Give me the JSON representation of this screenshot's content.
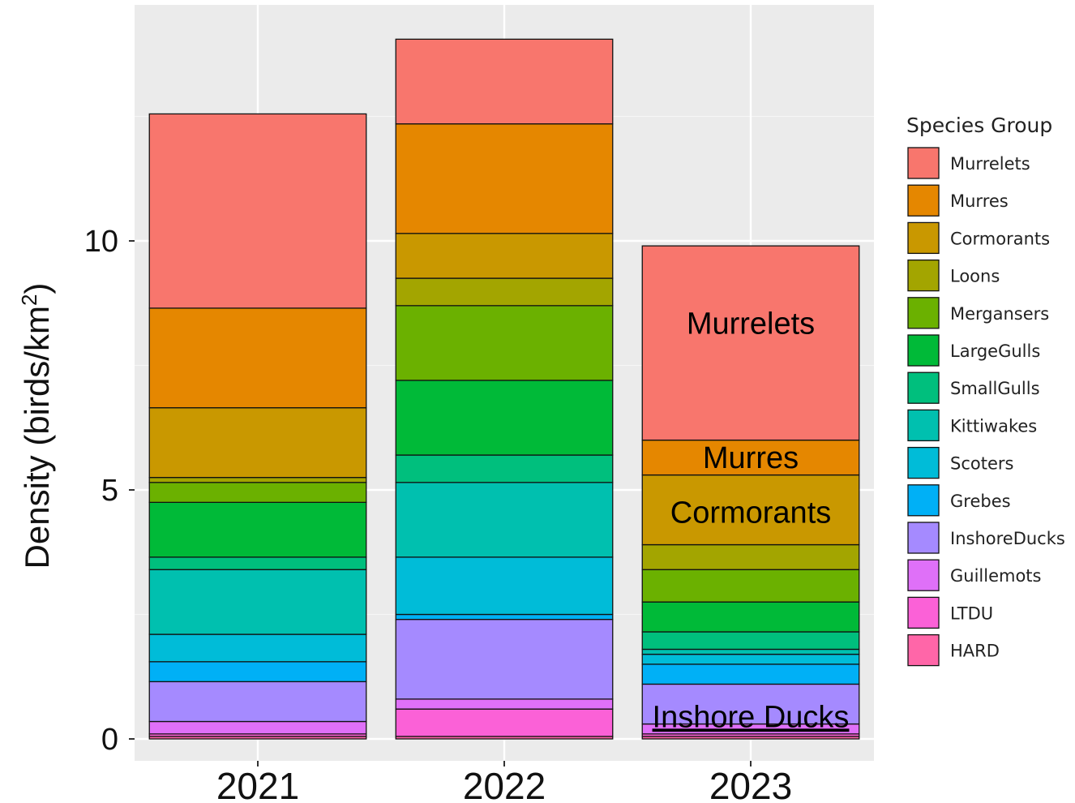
{
  "chart_data": {
    "type": "bar",
    "stacked": true,
    "ylabel_prefix": "Density (birds/km",
    "ylabel_sup": "2",
    "ylabel_suffix": ")",
    "xlabel": "",
    "ylim": [
      0,
      15
    ],
    "yticks": [
      0,
      5,
      10
    ],
    "grid": true,
    "legend_position": "right",
    "legend_title": "Species Group",
    "categories": [
      "2021",
      "2022",
      "2023"
    ],
    "series": [
      {
        "name": "Murrelets",
        "color": "#F8766D",
        "values": [
          3.9,
          1.7,
          3.9
        ]
      },
      {
        "name": "Murres",
        "color": "#E58700",
        "values": [
          2.0,
          2.2,
          0.7
        ]
      },
      {
        "name": "Cormorants",
        "color": "#C99800",
        "values": [
          1.4,
          0.9,
          1.4
        ]
      },
      {
        "name": "Loons",
        "color": "#A3A500",
        "values": [
          0.1,
          0.55,
          0.5
        ]
      },
      {
        "name": "Mergansers",
        "color": "#6BB100",
        "values": [
          0.4,
          1.5,
          0.65
        ]
      },
      {
        "name": "LargeGulls",
        "color": "#00BA38",
        "values": [
          1.1,
          1.5,
          0.6
        ]
      },
      {
        "name": "SmallGulls",
        "color": "#00BF7D",
        "values": [
          0.25,
          0.55,
          0.35
        ]
      },
      {
        "name": "Kittiwakes",
        "color": "#00C0AF",
        "values": [
          1.3,
          1.5,
          0.1
        ]
      },
      {
        "name": "Scoters",
        "color": "#00BCD8",
        "values": [
          0.55,
          1.15,
          0.2
        ]
      },
      {
        "name": "Grebes",
        "color": "#00B0F6",
        "values": [
          0.4,
          0.1,
          0.4
        ]
      },
      {
        "name": "InshoreDucks",
        "color": "#A58AFF",
        "values": [
          0.8,
          1.6,
          0.8
        ]
      },
      {
        "name": "Guillemots",
        "color": "#DF70F8",
        "values": [
          0.25,
          0.2,
          0.2
        ]
      },
      {
        "name": "LTDU",
        "color": "#FB61D7",
        "values": [
          0.05,
          0.55,
          0.05
        ]
      },
      {
        "name": "HARD",
        "color": "#FF66A8",
        "values": [
          0.05,
          0.05,
          0.05
        ]
      }
    ],
    "annotations": [
      {
        "text": "Murrelets",
        "category": "2023",
        "y": 8.35,
        "underline": false
      },
      {
        "text": "Murres",
        "category": "2023",
        "y": 5.65,
        "underline": false
      },
      {
        "text": "Cormorants",
        "category": "2023",
        "y": 4.55,
        "underline": false
      },
      {
        "text": "Inshore Ducks",
        "category": "2023",
        "y": 0.45,
        "underline": true
      }
    ]
  }
}
